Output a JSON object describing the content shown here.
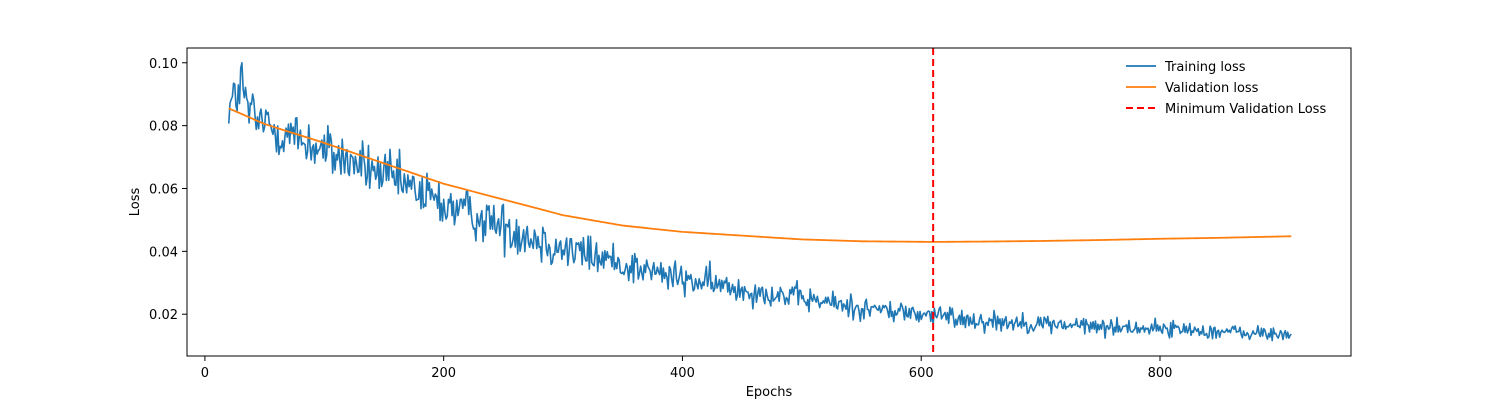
{
  "chart_data": {
    "type": "line",
    "title": "",
    "xlabel": "Epochs",
    "ylabel": "Loss",
    "xlim": [
      -15,
      960
    ],
    "ylim": [
      0.0067,
      0.1047
    ],
    "xticks": [
      0,
      200,
      400,
      600,
      800
    ],
    "yticks": [
      0.02,
      0.04,
      0.06,
      0.08,
      0.1
    ],
    "ytick_labels": [
      "0.02",
      "0.04",
      "0.06",
      "0.08",
      "0.10"
    ],
    "grid": false,
    "legend": {
      "position": "top-right",
      "frame": false
    },
    "series": [
      {
        "name": "Training loss",
        "color": "#1f77b4",
        "style": "solid",
        "x_start": 20,
        "x_end": 910,
        "trend_points": [
          [
            20,
            0.086
          ],
          [
            30,
            0.092
          ],
          [
            40,
            0.082
          ],
          [
            60,
            0.079
          ],
          [
            100,
            0.072
          ],
          [
            150,
            0.064
          ],
          [
            200,
            0.055
          ],
          [
            250,
            0.048
          ],
          [
            300,
            0.041
          ],
          [
            350,
            0.036
          ],
          [
            400,
            0.031
          ],
          [
            450,
            0.028
          ],
          [
            500,
            0.025
          ],
          [
            550,
            0.022
          ],
          [
            600,
            0.02
          ],
          [
            650,
            0.018
          ],
          [
            700,
            0.017
          ],
          [
            750,
            0.016
          ],
          [
            800,
            0.0155
          ],
          [
            850,
            0.0145
          ],
          [
            900,
            0.0135
          ],
          [
            910,
            0.0135
          ]
        ],
        "noise_points": [
          [
            20,
            0.004
          ],
          [
            40,
            0.005
          ],
          [
            100,
            0.004
          ],
          [
            200,
            0.004
          ],
          [
            300,
            0.0035
          ],
          [
            400,
            0.0025
          ],
          [
            500,
            0.002
          ],
          [
            600,
            0.0018
          ],
          [
            700,
            0.0015
          ],
          [
            800,
            0.0013
          ],
          [
            910,
            0.0012
          ]
        ],
        "y_max": 0.1,
        "y_max_x": 31
      },
      {
        "name": "Validation loss",
        "color": "#ff7f0e",
        "style": "solid",
        "x_start": 20,
        "x_end": 910,
        "trend_points": [
          [
            20,
            0.0855
          ],
          [
            50,
            0.0805
          ],
          [
            100,
            0.0745
          ],
          [
            150,
            0.068
          ],
          [
            200,
            0.0615
          ],
          [
            250,
            0.0565
          ],
          [
            300,
            0.0515
          ],
          [
            350,
            0.0482
          ],
          [
            400,
            0.0462
          ],
          [
            450,
            0.045
          ],
          [
            500,
            0.0438
          ],
          [
            550,
            0.0432
          ],
          [
            580,
            0.0431
          ],
          [
            610,
            0.043
          ],
          [
            650,
            0.0431
          ],
          [
            700,
            0.0433
          ],
          [
            750,
            0.0436
          ],
          [
            800,
            0.044
          ],
          [
            850,
            0.0443
          ],
          [
            910,
            0.0448
          ]
        ]
      },
      {
        "name": "Minimum Validation Loss",
        "color": "#ff0000",
        "style": "dashed",
        "vline_x": 610
      }
    ]
  }
}
